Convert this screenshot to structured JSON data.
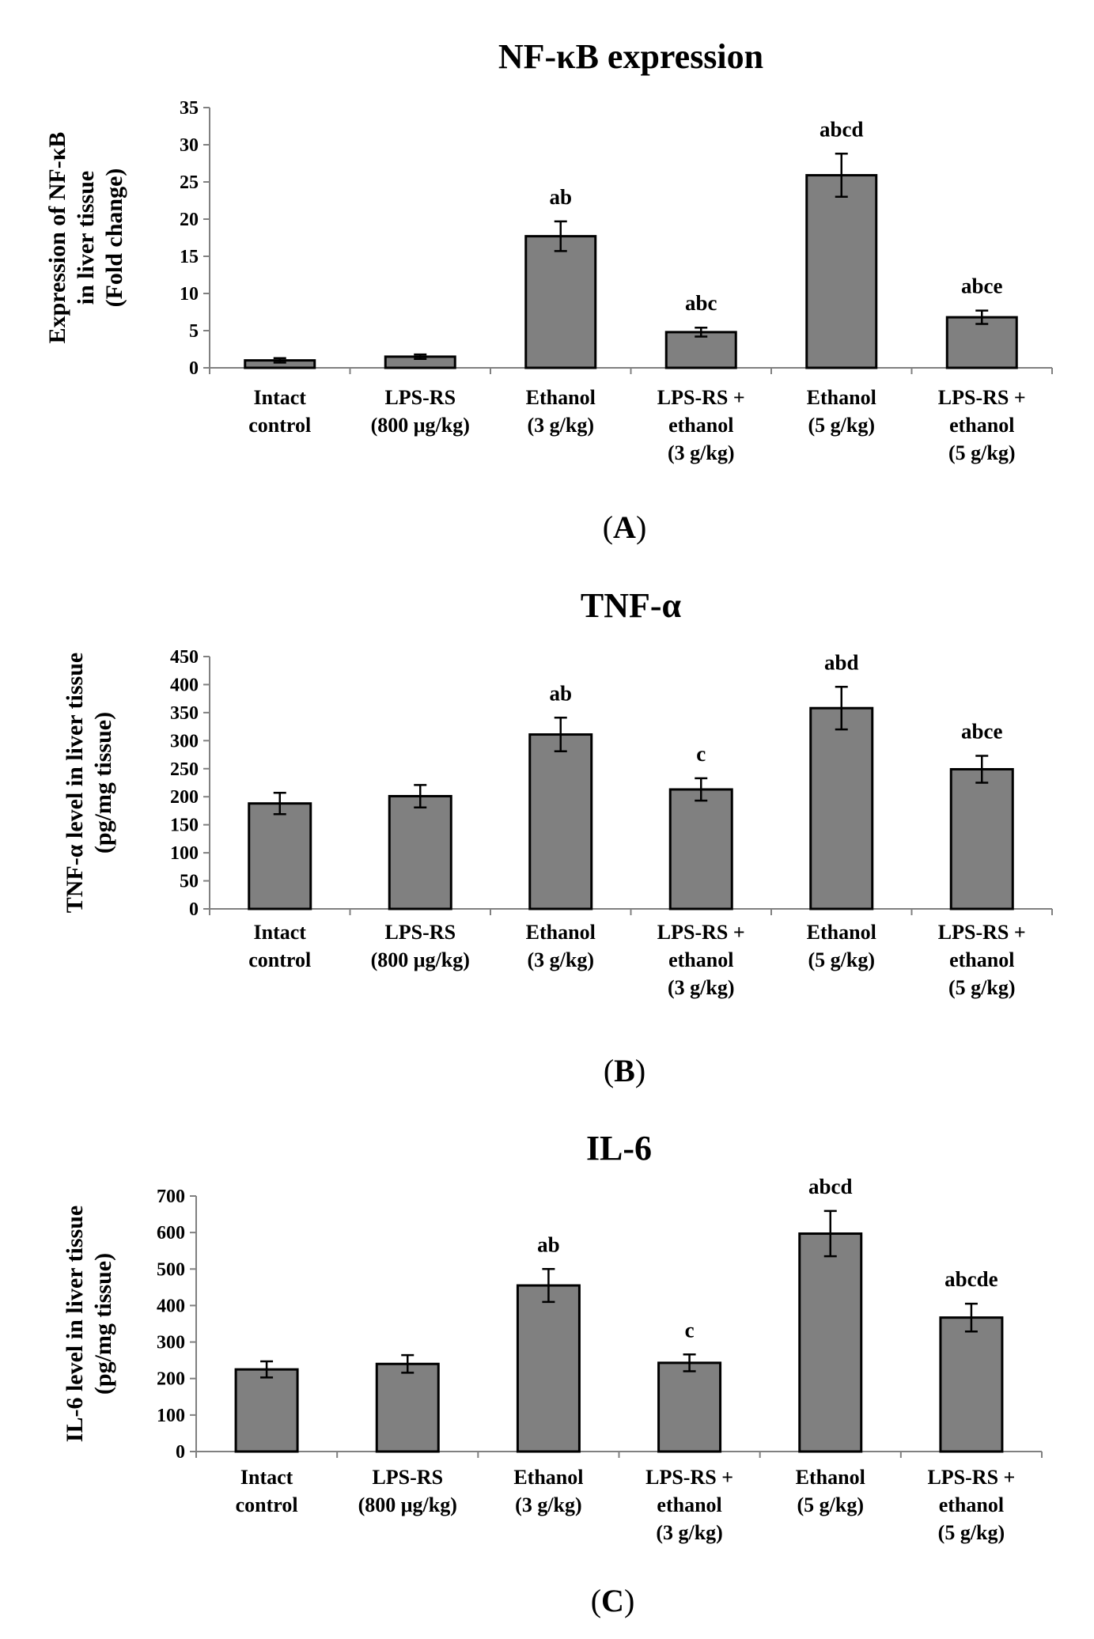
{
  "colors": {
    "bar_fill": "#808080",
    "bar_stroke": "#000000",
    "axis": "#808080",
    "text": "#000000"
  },
  "chart_data": [
    {
      "type": "bar",
      "panel_label": "A",
      "title": "NF-κB expression",
      "ylabel_lines": [
        "Expression of NF-κB",
        "in liver tissue",
        "(Fold change)"
      ],
      "xlabel": "",
      "ylim": [
        0,
        35
      ],
      "yticks": [
        0,
        5,
        10,
        15,
        20,
        25,
        30,
        35
      ],
      "categories": [
        [
          "Intact",
          "control"
        ],
        [
          "LPS-RS",
          "(800 μg/kg)"
        ],
        [
          "Ethanol",
          "(3 g/kg)"
        ],
        [
          "LPS-RS +",
          "ethanol",
          "(3 g/kg)"
        ],
        [
          "Ethanol",
          "(5 g/kg)"
        ],
        [
          "LPS-RS +",
          "ethanol",
          "(5 g/kg)"
        ]
      ],
      "values": [
        1.0,
        1.5,
        17.7,
        4.8,
        25.9,
        6.8
      ],
      "errors": [
        0.3,
        0.3,
        2.0,
        0.6,
        2.9,
        0.9
      ],
      "significance": [
        "",
        "",
        "ab",
        "abc",
        "abcd",
        "abce"
      ],
      "grid": false,
      "legend": "none"
    },
    {
      "type": "bar",
      "panel_label": "B",
      "title": "TNF-α",
      "ylabel_lines": [
        "TNF-α level in liver tissue",
        "(pg/mg tissue)"
      ],
      "xlabel": "",
      "ylim": [
        0,
        450
      ],
      "yticks": [
        0,
        50,
        100,
        150,
        200,
        250,
        300,
        350,
        400,
        450
      ],
      "categories": [
        [
          "Intact",
          "control"
        ],
        [
          "LPS-RS",
          "(800 μg/kg)"
        ],
        [
          "Ethanol",
          "(3 g/kg)"
        ],
        [
          "LPS-RS +",
          "ethanol",
          "(3 g/kg)"
        ],
        [
          "Ethanol",
          "(5 g/kg)"
        ],
        [
          "LPS-RS +",
          "ethanol",
          "(5 g/kg)"
        ]
      ],
      "values": [
        188,
        201,
        311,
        213,
        358,
        249
      ],
      "errors": [
        19,
        20,
        30,
        20,
        38,
        24
      ],
      "significance": [
        "",
        "",
        "ab",
        "c",
        "abd",
        "abce"
      ],
      "grid": false,
      "legend": "none"
    },
    {
      "type": "bar",
      "panel_label": "C",
      "title": "IL-6",
      "ylabel_lines": [
        "IL-6 level in liver tissue",
        "(pg/mg tissue)"
      ],
      "xlabel": "",
      "ylim": [
        0,
        700
      ],
      "yticks": [
        0,
        100,
        200,
        300,
        400,
        500,
        600,
        700
      ],
      "categories": [
        [
          "Intact",
          "control"
        ],
        [
          "LPS-RS",
          "(800 μg/kg)"
        ],
        [
          "Ethanol",
          "(3 g/kg)"
        ],
        [
          "LPS-RS +",
          "ethanol",
          "(3 g/kg)"
        ],
        [
          "Ethanol",
          "(5 g/kg)"
        ],
        [
          "LPS-RS +",
          "ethanol",
          "(5 g/kg)"
        ]
      ],
      "values": [
        225,
        240,
        455,
        243,
        597,
        367
      ],
      "errors": [
        22,
        24,
        45,
        23,
        62,
        38
      ],
      "significance": [
        "",
        "",
        "ab",
        "c",
        "abcd",
        "abcde"
      ],
      "grid": false,
      "legend": "none"
    }
  ]
}
